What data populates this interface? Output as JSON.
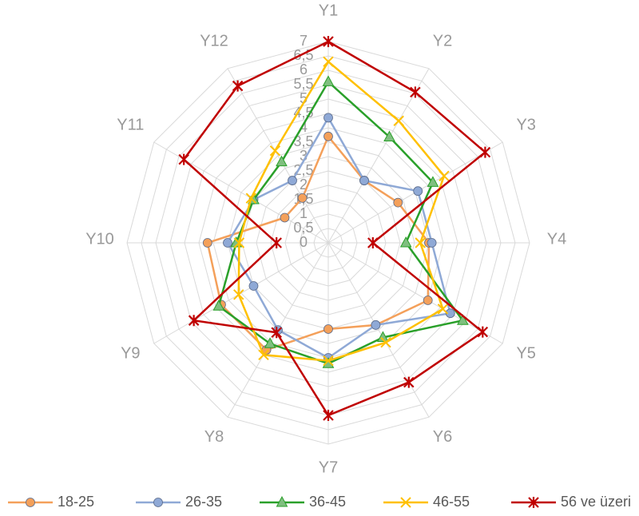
{
  "chart_data": {
    "type": "radar",
    "categories": [
      "Y1",
      "Y2",
      "Y3",
      "Y4",
      "Y5",
      "Y6",
      "Y7",
      "Y8",
      "Y9",
      "Y10",
      "Y11",
      "Y12"
    ],
    "series": [
      {
        "name": "18-25",
        "color": "#f4a05a",
        "marker": "circle",
        "values": [
          3.7,
          2.5,
          2.8,
          3.5,
          4.0,
          3.3,
          3.0,
          4.3,
          4.3,
          4.2,
          1.75,
          1.8
        ]
      },
      {
        "name": "26-35",
        "color": "#8fa9d6",
        "marker": "circle",
        "values": [
          4.35,
          2.5,
          3.6,
          3.6,
          4.9,
          3.3,
          4.0,
          3.5,
          3.0,
          3.5,
          3.0,
          2.5
        ]
      },
      {
        "name": "36-45",
        "color": "#2aa02a",
        "marker": "triangle",
        "values": [
          5.6,
          4.25,
          4.2,
          2.7,
          5.4,
          3.8,
          4.2,
          4.05,
          4.4,
          3.2,
          3.0,
          3.25
        ]
      },
      {
        "name": "46-55",
        "color": "#ffc000",
        "marker": "x",
        "values": [
          6.3,
          4.9,
          4.65,
          3.2,
          4.6,
          4.0,
          4.1,
          4.5,
          3.6,
          3.1,
          3.1,
          3.7
        ]
      },
      {
        "name": "56 ve üzeri",
        "color": "#c00000",
        "marker": "star",
        "values": [
          7.0,
          6.05,
          6.3,
          1.55,
          6.2,
          5.6,
          6.0,
          3.6,
          5.4,
          1.8,
          5.8,
          6.3
        ]
      }
    ],
    "ylim": [
      0,
      7
    ],
    "yticks": [
      0,
      {
        "value": 0.5,
        "label": "0,5"
      },
      1,
      {
        "value": 1.5,
        "label": "1,5"
      },
      2,
      {
        "value": 2.5,
        "label": "2,5"
      },
      3,
      {
        "value": 3.5,
        "label": "3,5"
      },
      4,
      {
        "value": 4.5,
        "label": "4,5"
      },
      5,
      {
        "value": 5.5,
        "label": "5,5"
      },
      6,
      {
        "value": 6.5,
        "label": "6,5"
      },
      7
    ],
    "grid": true,
    "legend": "bottom"
  }
}
